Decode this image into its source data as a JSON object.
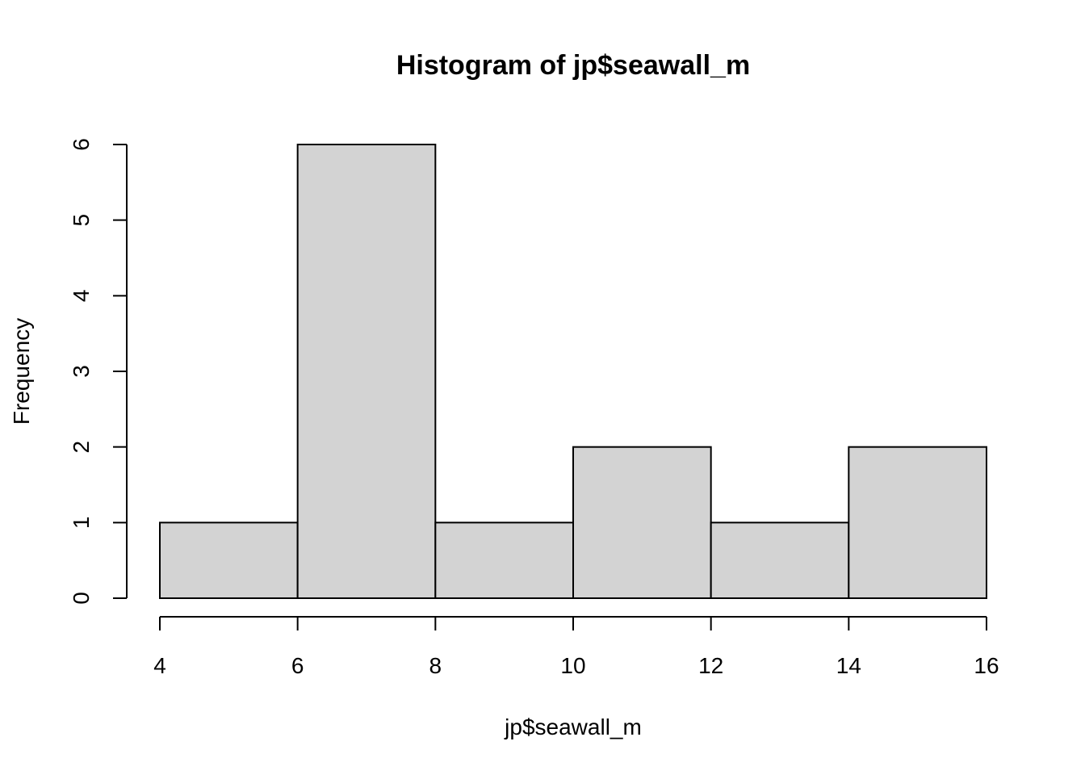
{
  "chart_data": {
    "type": "bar",
    "title": "Histogram of jp$seawall_m",
    "xlabel": "jp$seawall_m",
    "ylabel": "Frequency",
    "bins": [
      {
        "from": 4,
        "to": 6,
        "count": 1
      },
      {
        "from": 6,
        "to": 8,
        "count": 6
      },
      {
        "from": 8,
        "to": 10,
        "count": 1
      },
      {
        "from": 10,
        "to": 12,
        "count": 2
      },
      {
        "from": 12,
        "to": 14,
        "count": 1
      },
      {
        "from": 14,
        "to": 16,
        "count": 2
      }
    ],
    "xlim": [
      4,
      16
    ],
    "ylim": [
      0,
      6
    ],
    "xticks": [
      4,
      6,
      8,
      10,
      12,
      14,
      16
    ],
    "yticks": [
      0,
      1,
      2,
      3,
      4,
      5,
      6
    ],
    "grid": false,
    "bar_color": "#d3d3d3",
    "bar_border_color": "#000000"
  }
}
